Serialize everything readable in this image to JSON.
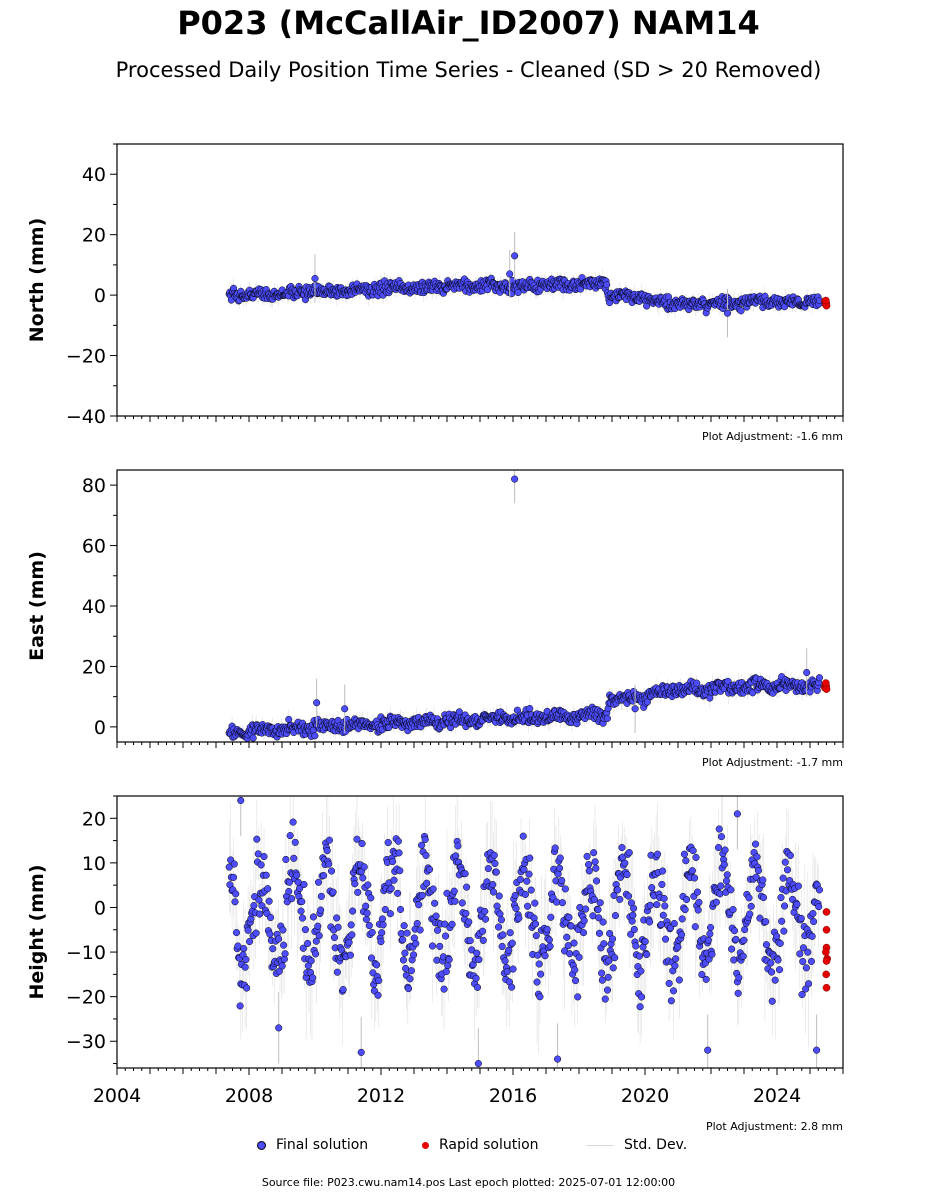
{
  "title": "P023 (McCallAir_ID2007) NAM14",
  "subtitle": "Processed Daily Position Time Series - Cleaned (SD > 20 Removed)",
  "legend": {
    "final": "Final solution",
    "rapid": "Rapid solution",
    "std": "Std. Dev."
  },
  "colors": {
    "final": "#4d4dff",
    "rapid": "#e60000",
    "std": "#bfbfbf",
    "marker_edge": "#000000"
  },
  "source_note": "Source file: P023.cwu.nam14.pos  Last epoch plotted: 2025-07-01 12:00:00",
  "chart_data": [
    {
      "type": "scatter",
      "id": "north",
      "ylabel": "North (mm)",
      "ylim": [
        -40,
        50
      ],
      "yticks": [
        -40,
        -20,
        0,
        20,
        40
      ],
      "ytick_labels": [
        "−40",
        "−20",
        "0",
        "20",
        "40"
      ],
      "xlim": [
        2004,
        2026
      ],
      "xticks": [],
      "adjustment": "Plot Adjustment: -1.6 mm",
      "final_trend": [
        {
          "x": 2007.4,
          "y": 0
        },
        {
          "x": 2010,
          "y": 1
        },
        {
          "x": 2012,
          "y": 2
        },
        {
          "x": 2014,
          "y": 3
        },
        {
          "x": 2016,
          "y": 3
        },
        {
          "x": 2018.85,
          "y": 4
        },
        {
          "x": 2018.9,
          "y": 0
        },
        {
          "x": 2020,
          "y": -1
        },
        {
          "x": 2020.8,
          "y": -3
        },
        {
          "x": 2025.3,
          "y": -2
        }
      ],
      "noise_amp": 1.4,
      "seasonal_amp": 0.5,
      "outliers": [
        {
          "x": 2016.05,
          "y": 13
        },
        {
          "x": 2010.0,
          "y": 5.5
        },
        {
          "x": 2015.9,
          "y": 7
        },
        {
          "x": 2022.5,
          "y": -6
        }
      ],
      "rapid": [
        {
          "x": 2025.45,
          "y": -2
        },
        {
          "x": 2025.47,
          "y": -3
        },
        {
          "x": 2025.49,
          "y": -2.5
        },
        {
          "x": 2025.5,
          "y": -3.5
        },
        {
          "x": 2025.48,
          "y": -1.8
        }
      ]
    },
    {
      "type": "scatter",
      "id": "east",
      "ylabel": "East (mm)",
      "ylim": [
        -5,
        85
      ],
      "yticks": [
        0,
        20,
        40,
        60,
        80
      ],
      "ytick_labels": [
        "0",
        "20",
        "40",
        "60",
        "80"
      ],
      "xlim": [
        2004,
        2026
      ],
      "xticks": [],
      "adjustment": "Plot Adjustment: -1.7 mm",
      "final_trend": [
        {
          "x": 2007.4,
          "y": -2
        },
        {
          "x": 2010,
          "y": 0
        },
        {
          "x": 2012,
          "y": 1
        },
        {
          "x": 2014,
          "y": 2
        },
        {
          "x": 2016,
          "y": 3
        },
        {
          "x": 2018.85,
          "y": 4
        },
        {
          "x": 2018.9,
          "y": 9
        },
        {
          "x": 2020,
          "y": 10
        },
        {
          "x": 2020.5,
          "y": 12
        },
        {
          "x": 2025.3,
          "y": 14
        }
      ],
      "noise_amp": 1.5,
      "seasonal_amp": 0.8,
      "outliers": [
        {
          "x": 2016.05,
          "y": 82
        },
        {
          "x": 2010.05,
          "y": 8
        },
        {
          "x": 2010.9,
          "y": 6
        },
        {
          "x": 2024.9,
          "y": 18
        },
        {
          "x": 2019.7,
          "y": 6
        }
      ],
      "rapid": [
        {
          "x": 2025.45,
          "y": 13
        },
        {
          "x": 2025.47,
          "y": 14
        },
        {
          "x": 2025.49,
          "y": 13.5
        },
        {
          "x": 2025.5,
          "y": 12.5
        },
        {
          "x": 2025.48,
          "y": 14.5
        }
      ]
    },
    {
      "type": "scatter",
      "id": "height",
      "ylabel": "Height (mm)",
      "ylim": [
        -36,
        25
      ],
      "yticks": [
        -30,
        -20,
        -10,
        0,
        10,
        20
      ],
      "ytick_labels": [
        "−30",
        "−20",
        "−10",
        "0",
        "10",
        "20"
      ],
      "xlim": [
        2004,
        2026
      ],
      "xticks": [
        2004,
        2008,
        2012,
        2016,
        2020,
        2024
      ],
      "adjustment": "Plot Adjustment: 2.8 mm",
      "final_trend": [
        {
          "x": 2007.4,
          "y": -2
        },
        {
          "x": 2025.3,
          "y": -2
        }
      ],
      "noise_amp": 6,
      "seasonal_amp": 11,
      "outliers": [
        {
          "x": 2007.75,
          "y": 24
        },
        {
          "x": 2008.9,
          "y": -27
        },
        {
          "x": 2011.4,
          "y": -32.5
        },
        {
          "x": 2014.95,
          "y": -35
        },
        {
          "x": 2017.35,
          "y": -34
        },
        {
          "x": 2021.9,
          "y": -32
        },
        {
          "x": 2022.8,
          "y": 21
        },
        {
          "x": 2025.2,
          "y": -32
        }
      ],
      "rapid": [
        {
          "x": 2025.5,
          "y": -1
        },
        {
          "x": 2025.5,
          "y": -5
        },
        {
          "x": 2025.5,
          "y": -9
        },
        {
          "x": 2025.48,
          "y": -10
        },
        {
          "x": 2025.52,
          "y": -11.5
        },
        {
          "x": 2025.5,
          "y": -12
        },
        {
          "x": 2025.49,
          "y": -15
        },
        {
          "x": 2025.5,
          "y": -18
        }
      ]
    }
  ]
}
